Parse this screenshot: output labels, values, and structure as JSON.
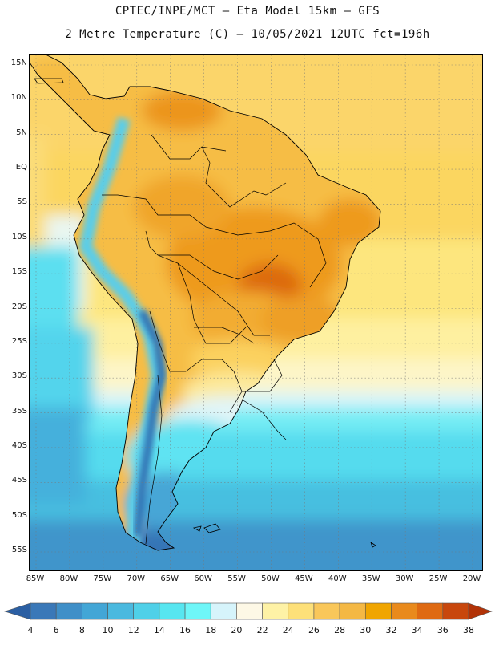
{
  "header": {
    "line1": "CPTEC/INPE/MCT –  Eta Model 15km – GFS",
    "line2": "2 Metre Temperature (C) – 10/05/2021 12UTC fct=196h"
  },
  "map": {
    "lat_labels": [
      "15N",
      "10N",
      "5N",
      "EQ",
      "5S",
      "10S",
      "15S",
      "20S",
      "25S",
      "30S",
      "35S",
      "40S",
      "45S",
      "50S",
      "55S"
    ],
    "lon_labels": [
      "85W",
      "80W",
      "75W",
      "70W",
      "65W",
      "60W",
      "55W",
      "50W",
      "45W",
      "40W",
      "35W",
      "30W",
      "25W",
      "20W"
    ],
    "lon_range": [
      -86,
      -19
    ],
    "lat_range": [
      -58,
      17
    ]
  },
  "legend": {
    "ticks": [
      "4",
      "6",
      "8",
      "10",
      "12",
      "14",
      "16",
      "18",
      "20",
      "22",
      "24",
      "26",
      "28",
      "30",
      "32",
      "34",
      "36",
      "38"
    ],
    "colors": [
      "#2b5fa3",
      "#3a78b8",
      "#3f8fc8",
      "#43a6d6",
      "#4ab9df",
      "#4fd0e8",
      "#57e6f0",
      "#6ef6f8",
      "#d6f4fb",
      "#fdf8e6",
      "#fef2a6",
      "#fde079",
      "#f9c75a",
      "#f4b844",
      "#f0a500",
      "#e98a1c",
      "#df6a12",
      "#c8470c",
      "#b23307"
    ]
  }
}
